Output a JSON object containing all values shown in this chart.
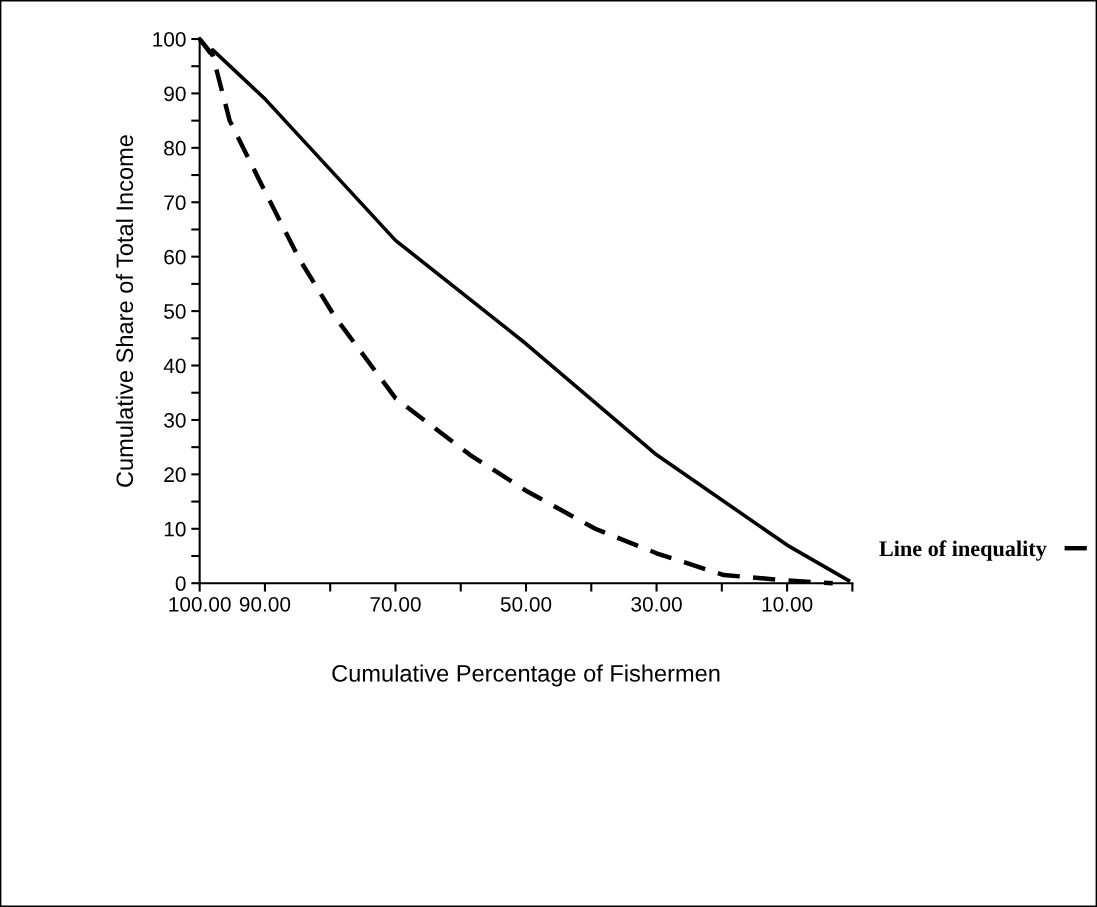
{
  "chart_data": {
    "type": "line",
    "xlabel": "Cumulative Percentage of Fishermen",
    "ylabel": "Cumulative Share of Total Income",
    "xlim": [
      100,
      0
    ],
    "xticks": [
      {
        "value": 100,
        "label": "100.00"
      },
      {
        "value": 90,
        "label": "90.00"
      },
      {
        "value": 80,
        "label": null
      },
      {
        "value": 70,
        "label": "70.00"
      },
      {
        "value": 60,
        "label": null
      },
      {
        "value": 50,
        "label": "50.00"
      },
      {
        "value": 40,
        "label": null
      },
      {
        "value": 30,
        "label": "30.00"
      },
      {
        "value": 20,
        "label": null
      },
      {
        "value": 10,
        "label": "10.00"
      },
      {
        "value": 0,
        "label": null
      }
    ],
    "ylim": [
      0,
      100
    ],
    "yticks": [
      0,
      {
        "value": 5,
        "label": null
      },
      10,
      {
        "value": 15,
        "label": null
      },
      20,
      {
        "value": 25,
        "label": null
      },
      30,
      {
        "value": 35,
        "label": null
      },
      40,
      {
        "value": 45,
        "label": null
      },
      50,
      {
        "value": 55,
        "label": null
      },
      60,
      {
        "value": 65,
        "label": null
      },
      70,
      {
        "value": 75,
        "label": null
      },
      80,
      {
        "value": 85,
        "label": null
      },
      90,
      {
        "value": 95,
        "label": null
      },
      100
    ],
    "grid": false,
    "legend": "right",
    "series": [
      {
        "color": "#000000",
        "line_style": "solid",
        "x": [
          100,
          98.5,
          98,
          90,
          70,
          50,
          30,
          10,
          0.6
        ],
        "values": [
          100,
          97.5,
          98,
          89,
          63,
          44,
          23.6,
          7,
          0.5
        ]
      },
      {
        "name": "Line of inequality",
        "color": "#000000",
        "line_style": "dashed",
        "x": [
          100,
          98,
          95.4,
          90,
          84.7,
          79.3,
          70,
          58.6,
          50,
          39.4,
          30,
          19.7,
          10,
          3
        ],
        "values": [
          100,
          97,
          85,
          72,
          59.5,
          49,
          34,
          23.6,
          17,
          10,
          5.5,
          1.5,
          0.5,
          0
        ]
      }
    ]
  }
}
